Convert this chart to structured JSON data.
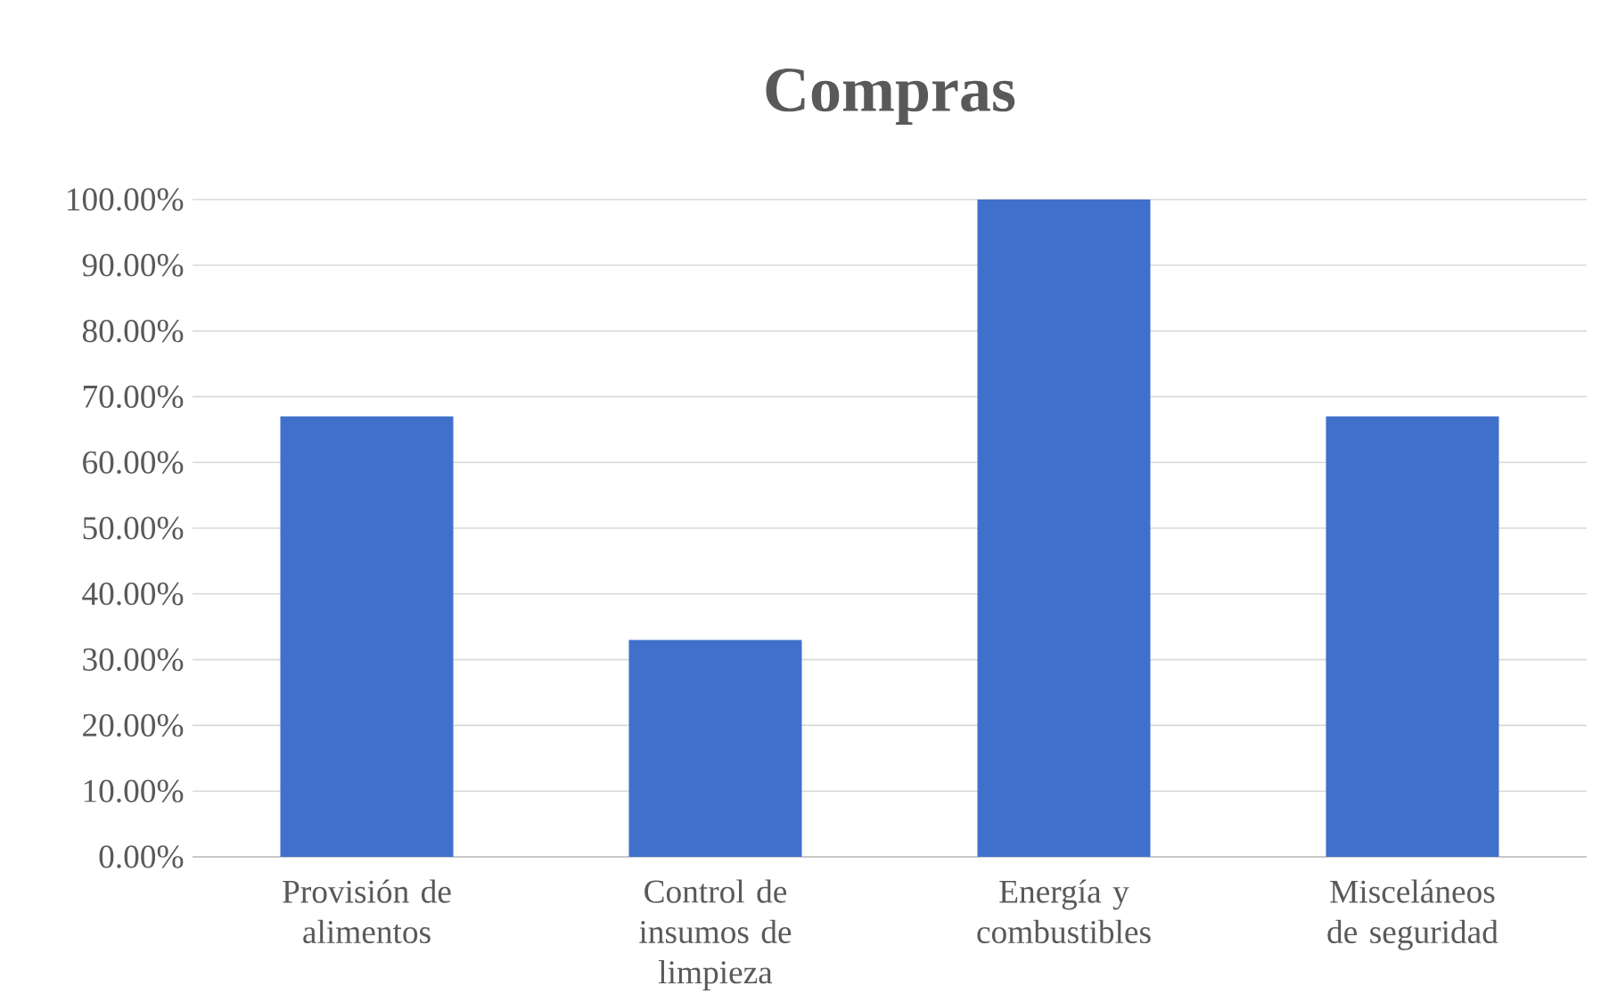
{
  "chart_data": {
    "type": "bar",
    "title": "Compras",
    "categories": [
      "Provisión de alimentos",
      "Control de insumos de limpieza",
      "Energía y combustibles",
      "Misceláneos de seguridad"
    ],
    "values": [
      67,
      33,
      100,
      67
    ],
    "color": "#4070cc",
    "ylim": [
      0,
      100
    ],
    "yticks": [
      {
        "value": 0,
        "label": "0.00%"
      },
      {
        "value": 10,
        "label": "10.00%"
      },
      {
        "value": 20,
        "label": "20.00%"
      },
      {
        "value": 30,
        "label": "30.00%"
      },
      {
        "value": 40,
        "label": "40.00%"
      },
      {
        "value": 50,
        "label": "50.00%"
      },
      {
        "value": 60,
        "label": "60.00%"
      },
      {
        "value": 70,
        "label": "70.00%"
      },
      {
        "value": 80,
        "label": "80.00%"
      },
      {
        "value": 90,
        "label": "90.00%"
      },
      {
        "value": 100,
        "label": "100.00%"
      }
    ],
    "grid": "y"
  }
}
